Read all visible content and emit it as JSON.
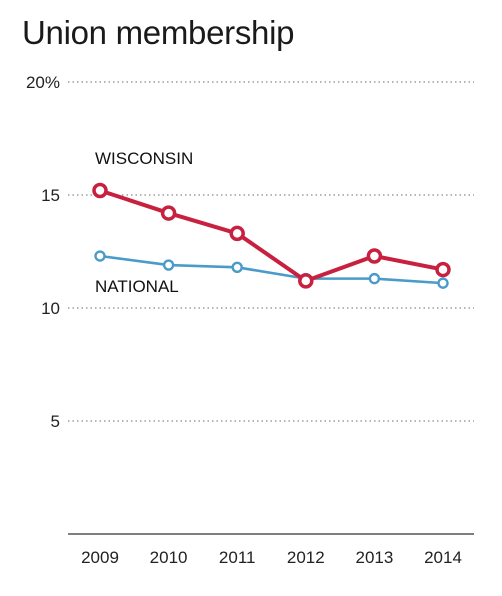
{
  "chart_data": {
    "type": "line",
    "title": "Union membership",
    "x": [
      "2009",
      "2010",
      "2011",
      "2012",
      "2013",
      "2014"
    ],
    "yticks": [
      "20%",
      "15",
      "10",
      "5"
    ],
    "ylim": [
      0,
      20
    ],
    "grid": true,
    "series": [
      {
        "name": "WISCONSIN",
        "color": "#c8203f",
        "values": [
          15.2,
          14.2,
          13.3,
          11.2,
          12.3,
          11.7
        ]
      },
      {
        "name": "NATIONAL",
        "color": "#4a9bc9",
        "values": [
          12.3,
          11.9,
          11.8,
          11.3,
          11.3,
          11.1
        ]
      }
    ]
  }
}
